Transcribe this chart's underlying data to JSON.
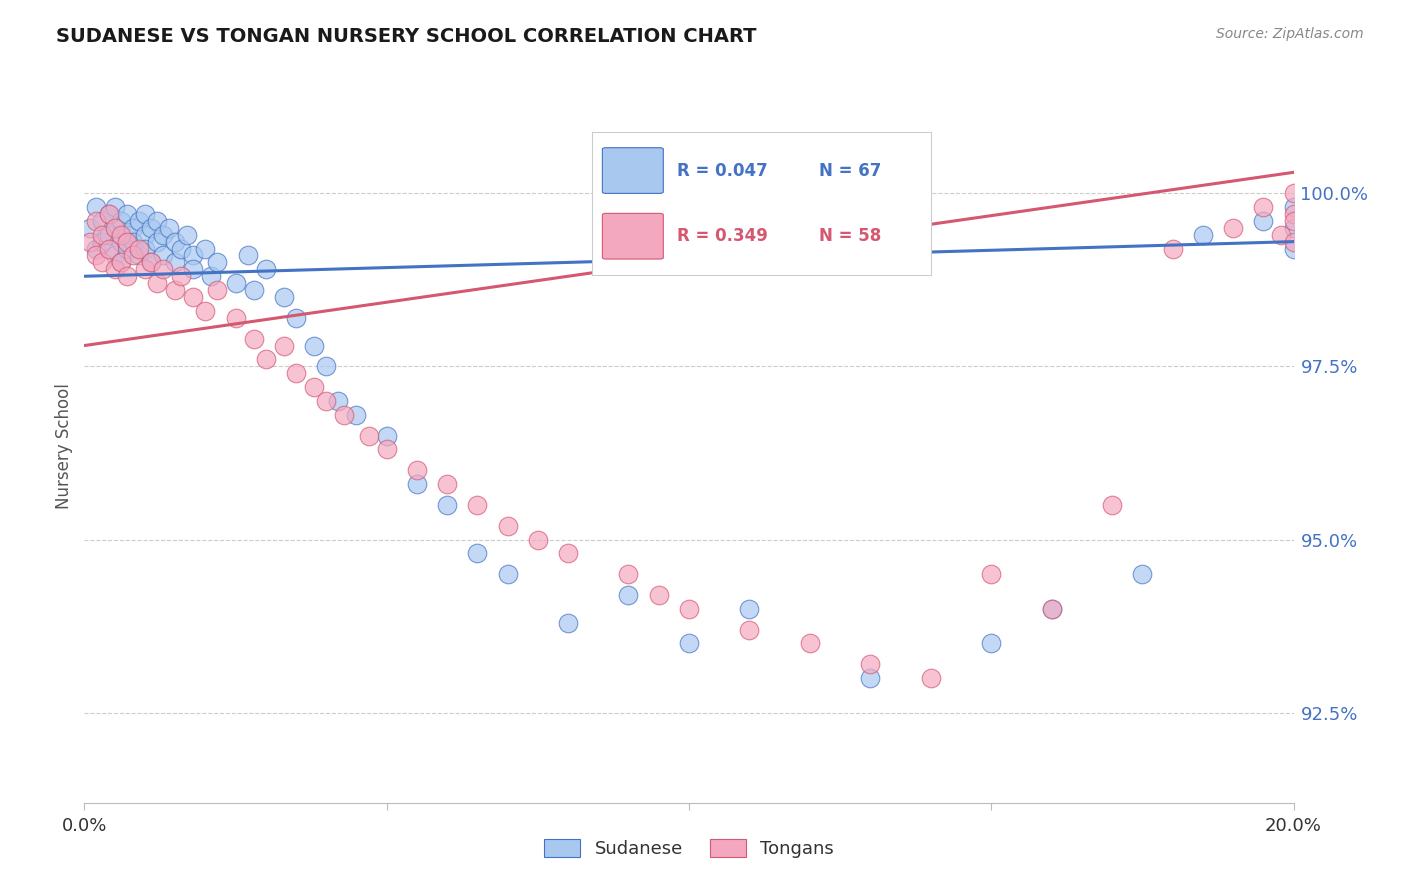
{
  "title": "SUDANESE VS TONGAN NURSERY SCHOOL CORRELATION CHART",
  "source": "Source: ZipAtlas.com",
  "ylabel": "Nursery School",
  "y_ticks": [
    92.5,
    95.0,
    97.5,
    100.0
  ],
  "y_tick_labels": [
    "92.5%",
    "95.0%",
    "97.5%",
    "100.0%"
  ],
  "x_range": [
    0.0,
    0.2
  ],
  "y_range": [
    91.2,
    101.5
  ],
  "legend_blue_r": "R = 0.047",
  "legend_blue_n": "N = 67",
  "legend_pink_r": "R = 0.349",
  "legend_pink_n": "N = 58",
  "blue_color": "#A8C8F0",
  "pink_color": "#F4A8C0",
  "blue_line_color": "#4472C4",
  "pink_line_color": "#D45870",
  "background_color": "#ffffff",
  "sudanese_x": [
    0.001,
    0.002,
    0.002,
    0.003,
    0.003,
    0.004,
    0.004,
    0.005,
    0.005,
    0.005,
    0.006,
    0.006,
    0.006,
    0.007,
    0.007,
    0.007,
    0.008,
    0.008,
    0.009,
    0.009,
    0.01,
    0.01,
    0.01,
    0.011,
    0.011,
    0.012,
    0.012,
    0.013,
    0.013,
    0.014,
    0.015,
    0.015,
    0.016,
    0.017,
    0.018,
    0.018,
    0.02,
    0.021,
    0.022,
    0.025,
    0.027,
    0.028,
    0.03,
    0.033,
    0.035,
    0.038,
    0.04,
    0.042,
    0.045,
    0.05,
    0.055,
    0.06,
    0.065,
    0.07,
    0.08,
    0.09,
    0.1,
    0.11,
    0.13,
    0.15,
    0.16,
    0.175,
    0.185,
    0.195,
    0.2,
    0.2,
    0.2
  ],
  "sudanese_y": [
    99.5,
    99.8,
    99.2,
    99.6,
    99.3,
    99.7,
    99.4,
    99.8,
    99.5,
    99.1,
    99.6,
    99.3,
    99.0,
    99.4,
    99.7,
    99.2,
    99.5,
    99.3,
    99.6,
    99.1,
    99.4,
    99.7,
    99.2,
    99.5,
    99.0,
    99.3,
    99.6,
    99.4,
    99.1,
    99.5,
    99.3,
    99.0,
    99.2,
    99.4,
    99.1,
    98.9,
    99.2,
    98.8,
    99.0,
    98.7,
    99.1,
    98.6,
    98.9,
    98.5,
    98.2,
    97.8,
    97.5,
    97.0,
    96.8,
    96.5,
    95.8,
    95.5,
    94.8,
    94.5,
    93.8,
    94.2,
    93.5,
    94.0,
    93.0,
    93.5,
    94.0,
    94.5,
    99.4,
    99.6,
    99.8,
    99.5,
    99.2
  ],
  "tongan_x": [
    0.001,
    0.002,
    0.002,
    0.003,
    0.003,
    0.004,
    0.004,
    0.005,
    0.005,
    0.006,
    0.006,
    0.007,
    0.007,
    0.008,
    0.009,
    0.01,
    0.011,
    0.012,
    0.013,
    0.015,
    0.016,
    0.018,
    0.02,
    0.022,
    0.025,
    0.028,
    0.03,
    0.033,
    0.035,
    0.038,
    0.04,
    0.043,
    0.047,
    0.05,
    0.055,
    0.06,
    0.065,
    0.07,
    0.075,
    0.08,
    0.09,
    0.095,
    0.1,
    0.11,
    0.12,
    0.13,
    0.14,
    0.15,
    0.16,
    0.17,
    0.18,
    0.19,
    0.195,
    0.198,
    0.2,
    0.2,
    0.2,
    0.2
  ],
  "tongan_y": [
    99.3,
    99.6,
    99.1,
    99.4,
    99.0,
    99.7,
    99.2,
    99.5,
    98.9,
    99.4,
    99.0,
    99.3,
    98.8,
    99.1,
    99.2,
    98.9,
    99.0,
    98.7,
    98.9,
    98.6,
    98.8,
    98.5,
    98.3,
    98.6,
    98.2,
    97.9,
    97.6,
    97.8,
    97.4,
    97.2,
    97.0,
    96.8,
    96.5,
    96.3,
    96.0,
    95.8,
    95.5,
    95.2,
    95.0,
    94.8,
    94.5,
    94.2,
    94.0,
    93.7,
    93.5,
    93.2,
    93.0,
    94.5,
    94.0,
    95.5,
    99.2,
    99.5,
    99.8,
    99.4,
    100.0,
    99.7,
    99.6,
    99.3
  ],
  "blue_trend_x": [
    0.0,
    0.2
  ],
  "blue_trend_y": [
    98.8,
    99.3
  ],
  "pink_trend_x": [
    0.0,
    0.2
  ],
  "pink_trend_y": [
    97.8,
    100.3
  ]
}
